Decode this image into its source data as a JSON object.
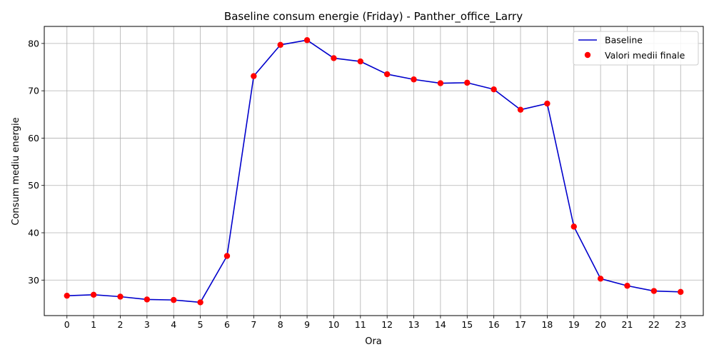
{
  "chart_data": {
    "type": "line",
    "title": "Baseline consum energie (Friday) - Panther_office_Larry",
    "xlabel": "Ora",
    "ylabel": "Consum mediu energie",
    "x": [
      0,
      1,
      2,
      3,
      4,
      5,
      6,
      7,
      8,
      9,
      10,
      11,
      12,
      13,
      14,
      15,
      16,
      17,
      18,
      19,
      20,
      21,
      22,
      23
    ],
    "x_tick_labels": [
      "0",
      "1",
      "2",
      "3",
      "4",
      "5",
      "6",
      "7",
      "8",
      "9",
      "10",
      "11",
      "12",
      "13",
      "14",
      "15",
      "16",
      "17",
      "18",
      "19",
      "20",
      "21",
      "22",
      "23"
    ],
    "y_ticks": [
      30,
      40,
      50,
      60,
      70,
      80
    ],
    "y_tick_labels": [
      "30",
      "40",
      "50",
      "60",
      "70",
      "80"
    ],
    "xlim": [
      -0.85,
      23.85
    ],
    "ylim": [
      22.5,
      83.6
    ],
    "grid": true,
    "legend_position": "top-right",
    "series": [
      {
        "name": "Baseline",
        "kind": "line",
        "color": "#0000cc",
        "values": [
          26.7,
          26.9,
          26.5,
          25.9,
          25.8,
          25.3,
          35.1,
          73.1,
          79.7,
          80.7,
          76.9,
          76.2,
          73.5,
          72.4,
          71.6,
          71.7,
          70.3,
          66.0,
          67.3,
          41.3,
          30.3,
          28.8,
          27.7,
          27.5
        ]
      },
      {
        "name": "Valori medii finale",
        "kind": "scatter",
        "color": "#ff0000",
        "values": [
          26.7,
          26.9,
          26.5,
          25.9,
          25.8,
          25.3,
          35.1,
          73.1,
          79.7,
          80.7,
          76.9,
          76.2,
          73.5,
          72.4,
          71.6,
          71.7,
          70.3,
          66.0,
          67.3,
          41.3,
          30.3,
          28.8,
          27.7,
          27.5
        ]
      }
    ]
  }
}
